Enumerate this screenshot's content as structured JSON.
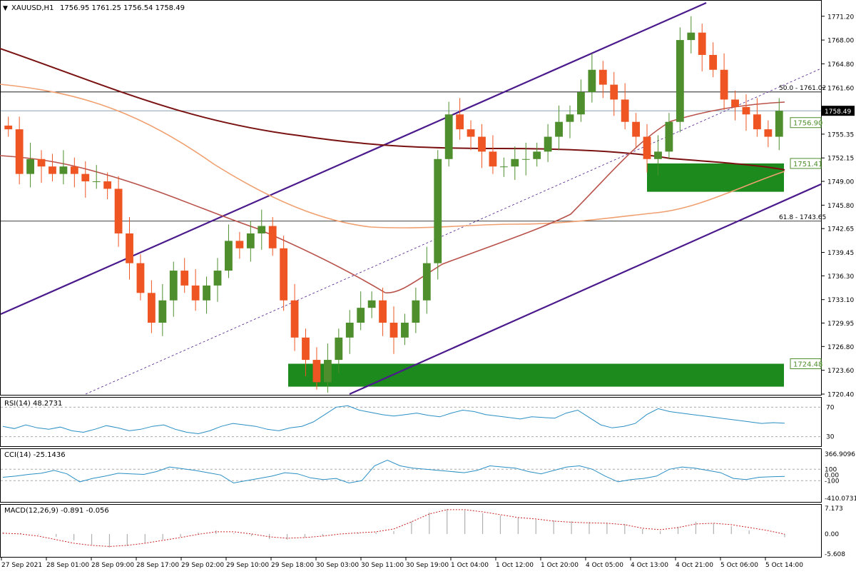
{
  "header": {
    "symbol": "XAUUSD,H1",
    "ohlc": "1756.95 1761.25 1756.54 1758.49"
  },
  "colors": {
    "bull": "#4e8e2c",
    "bear": "#ee5522",
    "channel": "#4b1a8c",
    "ma_slow": "#7a1212",
    "ma_mid": "#b8524a",
    "ma_fast": "#f0a070",
    "zone": "#1c8a1c",
    "indicator": "#2a8fc4",
    "macd_signal": "#cc2222",
    "macd_hist": "#b0b0b0"
  },
  "chart_data": [
    {
      "type": "candlestick",
      "symbol": "XAUUSD",
      "timeframe": "H1",
      "y_range": [
        1720.4,
        1773.0
      ],
      "y_ticks": [
        "1771.20",
        "1768.00",
        "1764.80",
        "1761.60",
        "1758.40",
        "1755.35",
        "1752.15",
        "1749.00",
        "1745.80",
        "1742.65",
        "1739.45",
        "1736.30",
        "1733.10",
        "1729.95",
        "1726.80",
        "1723.60",
        "1720.40"
      ],
      "current_price": "1758.49",
      "price_labels": [
        "1756.90",
        "1751.41",
        "1724.48"
      ],
      "fib_labels": [
        "50.0 - 1761.02",
        "61.8 - 1743.65"
      ],
      "x_ticks": [
        "27 Sep 2021",
        "28 Sep 01:00",
        "28 Sep 09:00",
        "28 Sep 17:00",
        "29 Sep 02:00",
        "29 Sep 10:00",
        "29 Sep 18:00",
        "30 Sep 03:00",
        "30 Sep 11:00",
        "30 Sep 19:00",
        "1 Oct 04:00",
        "1 Oct 12:00",
        "1 Oct 20:00",
        "4 Oct 05:00",
        "4 Oct 13:00",
        "4 Oct 21:00",
        "5 Oct 06:00",
        "5 Oct 14:00"
      ],
      "close_path": [
        1756,
        1750,
        1752,
        1751,
        1750,
        1751,
        1750,
        1749,
        1749,
        1748,
        1742,
        1738,
        1734,
        1730,
        1733,
        1737,
        1735,
        1733,
        1735,
        1737,
        1741,
        1740,
        1742,
        1743,
        1740,
        1733,
        1728,
        1725,
        1722,
        1725,
        1728,
        1730,
        1732,
        1733,
        1730,
        1728,
        1730,
        1733,
        1738,
        1752,
        1758,
        1756,
        1755,
        1753,
        1751,
        1751,
        1752,
        1752,
        1753,
        1755,
        1757,
        1758,
        1761,
        1764,
        1762,
        1760,
        1757,
        1755,
        1752,
        1753,
        1757,
        1768,
        1769,
        1766,
        1764,
        1760,
        1759,
        1758,
        1756,
        1755,
        1758.49
      ]
    },
    {
      "type": "line",
      "indicator": "RSI",
      "title": "RSI(14) 48.2731",
      "y_ticks": [
        "70",
        "30"
      ],
      "values": [
        44,
        41,
        46,
        42,
        40,
        43,
        38,
        36,
        40,
        45,
        42,
        38,
        40,
        44,
        46,
        40,
        36,
        34,
        38,
        44,
        48,
        46,
        44,
        40,
        38,
        42,
        44,
        50,
        60,
        70,
        72,
        66,
        63,
        60,
        58,
        60,
        62,
        59,
        57,
        62,
        66,
        64,
        60,
        58,
        56,
        54,
        57,
        56,
        55,
        62,
        66,
        56,
        46,
        42,
        44,
        48,
        60,
        68,
        64,
        62,
        60,
        58,
        56,
        54,
        52,
        50,
        48,
        49,
        48.3
      ]
    },
    {
      "type": "line",
      "indicator": "CCI",
      "title": "CCI(14) -25.1436",
      "y_ticks": [
        "366.9096",
        "100",
        "0.00",
        "-100",
        "-410.0731"
      ],
      "values": [
        -40,
        -20,
        10,
        30,
        80,
        20,
        -120,
        -60,
        -20,
        30,
        20,
        10,
        60,
        140,
        110,
        80,
        40,
        0,
        -140,
        -100,
        -60,
        -20,
        40,
        20,
        -50,
        -80,
        -60,
        -140,
        -100,
        160,
        260,
        160,
        120,
        100,
        80,
        60,
        40,
        80,
        160,
        140,
        120,
        60,
        20,
        80,
        140,
        160,
        100,
        -20,
        -120,
        -80,
        -60,
        -20,
        100,
        140,
        120,
        80,
        40,
        -60,
        -80,
        -40,
        -30,
        -25.1
      ]
    },
    {
      "type": "bar+line",
      "indicator": "MACD",
      "title": "MACD(12,26,9) -0.891 -0.056",
      "y_ticks": [
        "7.173",
        "0.00",
        "-5.608"
      ],
      "histogram": [
        0.5,
        0.3,
        -0.2,
        -0.8,
        -1.8,
        -3.0,
        -3.8,
        -3.4,
        -2.6,
        -1.6,
        -0.8,
        0.4,
        1.0,
        0.2,
        -0.6,
        -1.4,
        -1.6,
        -1.0,
        -0.6,
        0.0,
        0.3,
        0.5,
        0.8,
        3.5,
        6.0,
        7.0,
        6.6,
        5.8,
        5.2,
        4.6,
        4.0,
        3.8,
        3.6,
        3.4,
        3.2,
        2.8,
        1.4,
        0.8,
        2.0,
        3.4,
        3.0,
        2.2,
        1.0,
        0.1,
        -0.9
      ],
      "signal": [
        0.2,
        0.0,
        -0.6,
        -1.6,
        -2.6,
        -3.2,
        -3.5,
        -3.2,
        -2.6,
        -1.8,
        -1.0,
        -0.1,
        0.6,
        0.6,
        0.0,
        -0.8,
        -1.2,
        -1.0,
        -0.6,
        0.0,
        0.3,
        0.6,
        1.4,
        3.4,
        5.6,
        6.8,
        6.8,
        6.2,
        5.4,
        4.6,
        4.2,
        3.6,
        3.3,
        3.1,
        3.0,
        2.6,
        1.6,
        1.2,
        1.8,
        2.8,
        3.0,
        2.6,
        1.8,
        1.0,
        -0.05
      ]
    }
  ]
}
